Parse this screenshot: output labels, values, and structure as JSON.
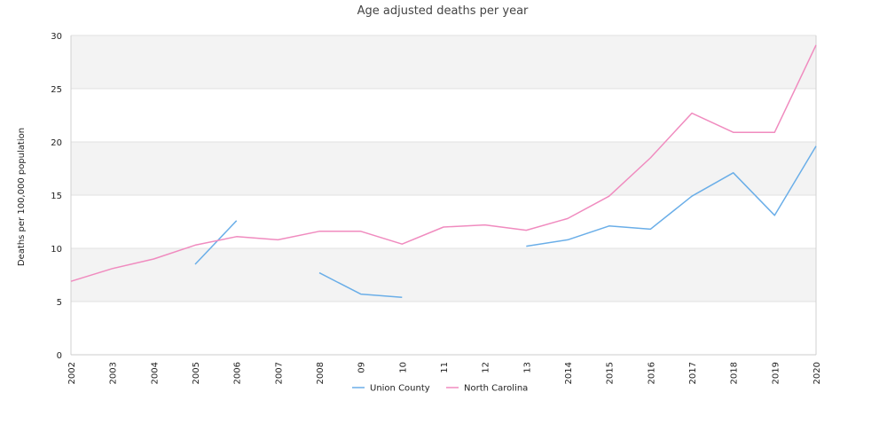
{
  "chart_data": {
    "type": "line",
    "title": "Age adjusted deaths per year",
    "xlabel": "",
    "ylabel": "Deaths per 100,000 population",
    "categories": [
      "2002",
      "2003",
      "2004",
      "2005",
      "2006",
      "2007",
      "2008",
      "09",
      "10",
      "11",
      "12",
      "13",
      "2014",
      "2015",
      "2016",
      "2017",
      "2018",
      "2019",
      "2020"
    ],
    "ylim": [
      0,
      30
    ],
    "yticks": [
      0,
      5,
      10,
      15,
      20,
      25,
      30
    ],
    "grid": "horizontal bands",
    "legend_position": "bottom",
    "series": [
      {
        "name": "Union County",
        "color": "#6aaee8",
        "values": [
          null,
          null,
          null,
          8.5,
          12.6,
          null,
          7.7,
          5.7,
          5.4,
          null,
          null,
          10.2,
          10.8,
          12.1,
          11.8,
          14.9,
          17.1,
          13.1,
          19.6
        ]
      },
      {
        "name": "North Carolina",
        "color": "#f08bbf",
        "values": [
          6.9,
          8.1,
          9.0,
          10.3,
          11.1,
          10.8,
          11.6,
          11.6,
          10.4,
          12.0,
          12.2,
          11.7,
          12.8,
          14.9,
          18.5,
          22.7,
          20.9,
          20.9,
          29.1
        ]
      }
    ]
  }
}
